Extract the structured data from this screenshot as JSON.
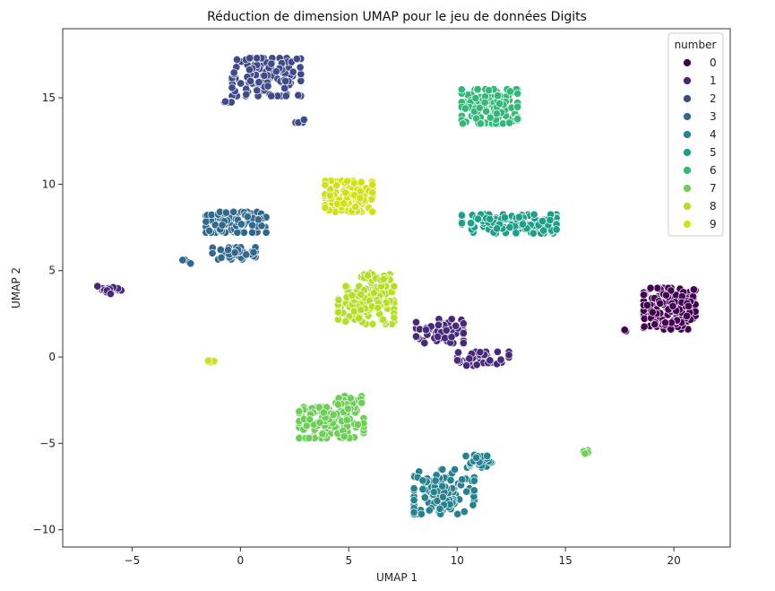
{
  "chart_data": {
    "type": "scatter",
    "title": "Réduction de dimension UMAP pour le jeu de données Digits",
    "xlabel": "UMAP 1",
    "ylabel": "UMAP 2",
    "xlim": [
      -8.2,
      22.6
    ],
    "ylim": [
      -11.0,
      19.0
    ],
    "xticks": [
      -5,
      0,
      5,
      10,
      15,
      20
    ],
    "xtick_labels": [
      "−5",
      "0",
      "5",
      "10",
      "15",
      "20"
    ],
    "yticks": [
      -10,
      -5,
      0,
      5,
      10,
      15
    ],
    "ytick_labels": [
      "−10",
      "−5",
      "0",
      "5",
      "10",
      "15"
    ],
    "grid": false,
    "legend": {
      "title": "number",
      "placement": "top-right",
      "entries": [
        "0",
        "1",
        "2",
        "3",
        "4",
        "5",
        "6",
        "7",
        "8",
        "9"
      ]
    },
    "series": [
      {
        "name": "0",
        "color": "#440154",
        "clusters": [
          {
            "cx": 19.8,
            "cy": 2.8,
            "rx": 1.2,
            "ry": 1.2,
            "n": 150
          },
          {
            "cx": 17.8,
            "cy": 1.5,
            "rx": 0.15,
            "ry": 0.1,
            "n": 4
          }
        ]
      },
      {
        "name": "1",
        "color": "#482878",
        "clusters": [
          {
            "cx": 9.2,
            "cy": 1.5,
            "rx": 1.1,
            "ry": 0.7,
            "n": 70
          },
          {
            "cx": 11.2,
            "cy": -0.1,
            "rx": 1.2,
            "ry": 0.4,
            "n": 40
          },
          {
            "cx": -6.0,
            "cy": 3.9,
            "rx": 0.6,
            "ry": 0.25,
            "n": 20
          }
        ]
      },
      {
        "name": "2",
        "color": "#3e4a89",
        "clusters": [
          {
            "cx": 1.2,
            "cy": 16.2,
            "rx": 1.6,
            "ry": 1.1,
            "n": 140
          },
          {
            "cx": 2.7,
            "cy": 13.6,
            "rx": 0.25,
            "ry": 0.15,
            "n": 5
          },
          {
            "cx": -0.6,
            "cy": 14.7,
            "rx": 0.3,
            "ry": 0.1,
            "n": 5
          }
        ]
      },
      {
        "name": "3",
        "color": "#31688e",
        "clusters": [
          {
            "cx": -0.2,
            "cy": 7.8,
            "rx": 1.4,
            "ry": 0.6,
            "n": 120
          },
          {
            "cx": -0.3,
            "cy": 6.0,
            "rx": 1.0,
            "ry": 0.35,
            "n": 40
          },
          {
            "cx": -2.5,
            "cy": 5.5,
            "rx": 0.2,
            "ry": 0.15,
            "n": 4
          }
        ]
      },
      {
        "name": "4",
        "color": "#26828e",
        "clusters": [
          {
            "cx": 9.4,
            "cy": -7.8,
            "rx": 1.4,
            "ry": 1.3,
            "n": 120
          },
          {
            "cx": 11.0,
            "cy": -6.0,
            "rx": 0.6,
            "ry": 0.4,
            "n": 30
          }
        ]
      },
      {
        "name": "5",
        "color": "#1f9e89",
        "clusters": [
          {
            "cx": 12.4,
            "cy": 7.7,
            "rx": 2.2,
            "ry": 0.55,
            "n": 140
          }
        ]
      },
      {
        "name": "6",
        "color": "#35b779",
        "clusters": [
          {
            "cx": 11.5,
            "cy": 14.5,
            "rx": 1.3,
            "ry": 1.0,
            "n": 150
          }
        ]
      },
      {
        "name": "7",
        "color": "#6ece58",
        "clusters": [
          {
            "cx": 4.2,
            "cy": -3.8,
            "rx": 1.5,
            "ry": 0.9,
            "n": 110
          },
          {
            "cx": 5.0,
            "cy": -2.6,
            "rx": 0.6,
            "ry": 0.4,
            "n": 25
          },
          {
            "cx": 15.9,
            "cy": -5.5,
            "rx": 0.2,
            "ry": 0.1,
            "n": 5
          }
        ]
      },
      {
        "name": "8",
        "color": "#b5de2b",
        "clusters": [
          {
            "cx": 5.8,
            "cy": 3.0,
            "rx": 1.3,
            "ry": 1.1,
            "n": 130
          },
          {
            "cx": 6.2,
            "cy": 4.6,
            "rx": 0.7,
            "ry": 0.3,
            "n": 25
          }
        ]
      },
      {
        "name": "9",
        "color": "#d0e11c",
        "clusters": [
          {
            "cx": 5.0,
            "cy": 9.3,
            "rx": 1.1,
            "ry": 0.9,
            "n": 120
          },
          {
            "cx": -1.4,
            "cy": -0.2,
            "rx": 0.2,
            "ry": 0.12,
            "n": 6
          }
        ]
      }
    ]
  }
}
